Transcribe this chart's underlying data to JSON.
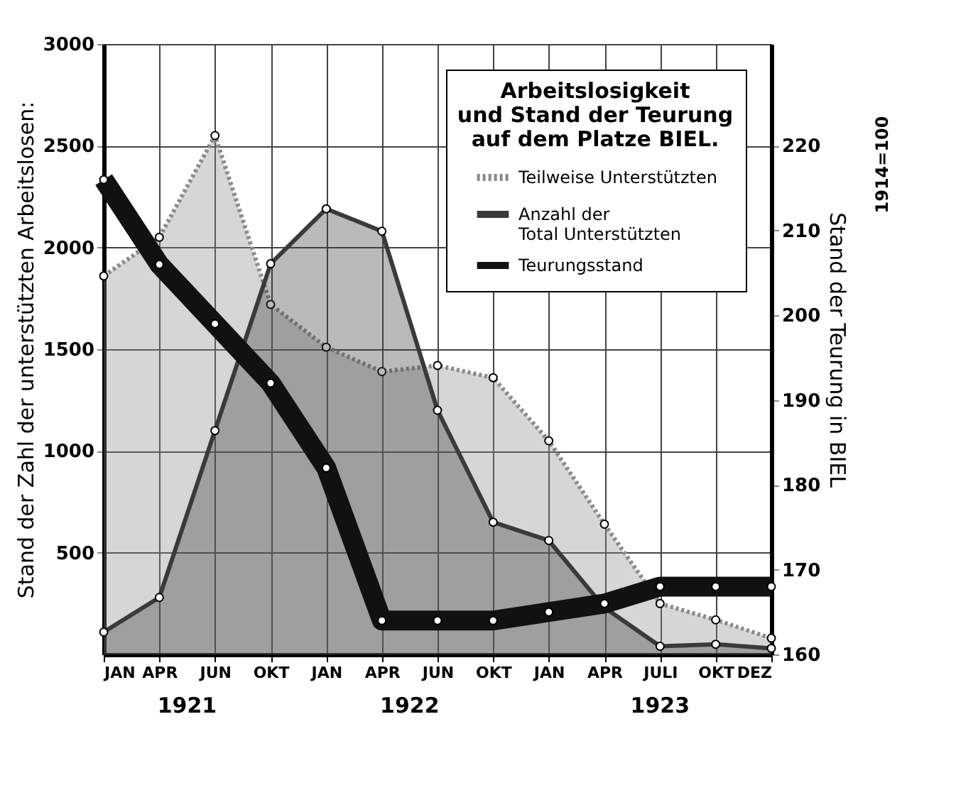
{
  "chart_data": {
    "type": "area",
    "title": "Arbeitslosigkeit\nund Stand der Teurung\nauf dem Platze BIEL.",
    "ylabel": "Stand der Zahl der unterstützten Arbeitslosen:",
    "y2label": "Stand der Teurung in BIEL",
    "categories": [
      "JAN",
      "APR",
      "JUN",
      "OKT",
      "JAN",
      "APR",
      "JUN",
      "OKT",
      "JAN",
      "APR",
      "JULI",
      "OKT",
      "DEZ"
    ],
    "series": [
      {
        "name": "Teilweise Unterstützten",
        "color": "#8a8a8a",
        "line_style": "dotted",
        "values": [
          1860,
          2050,
          2550,
          1720,
          1510,
          1390,
          1420,
          1360,
          1050,
          640,
          250,
          170,
          80
        ]
      },
      {
        "name": "Anzahl der\nTotal Unterstützten",
        "color": "#3a3a3a",
        "line_style": "solid",
        "values": [
          110,
          280,
          1100,
          1920,
          2190,
          2080,
          1200,
          650,
          560,
          230,
          40,
          50,
          30
        ]
      },
      {
        "name": "Teurungsstand",
        "type": "line",
        "axis": "y2",
        "color": "#111111",
        "line_style": "solid",
        "values": [
          216,
          206,
          199,
          192,
          182,
          164,
          164,
          164,
          165,
          166,
          168,
          168,
          168
        ]
      }
    ],
    "ylim": [
      0,
      3000
    ],
    "yticks": [
      500,
      1000,
      1500,
      2000,
      2500,
      3000
    ],
    "y2lim": [
      160,
      232
    ],
    "y2ticks": [
      160,
      170,
      180,
      190,
      200,
      210,
      220
    ],
    "grid": true,
    "legend": "top right",
    "marker": "circle",
    "annotations": [
      "1921",
      "1922",
      "1923",
      "1914=100"
    ]
  }
}
